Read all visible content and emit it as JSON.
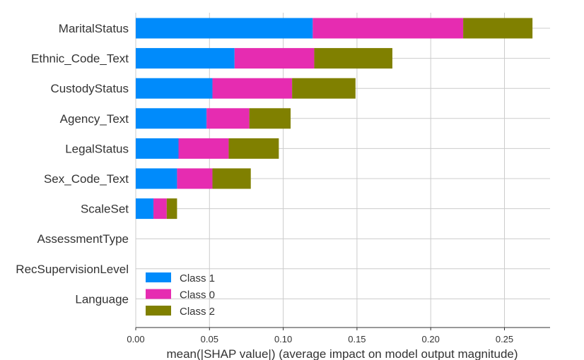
{
  "chart_data": {
    "type": "bar",
    "orientation": "horizontal",
    "stacked": true,
    "categories": [
      "MaritalStatus",
      "Ethnic_Code_Text",
      "CustodyStatus",
      "Agency_Text",
      "LegalStatus",
      "Sex_Code_Text",
      "ScaleSet",
      "AssessmentType",
      "RecSupervisionLevel",
      "Language"
    ],
    "series": [
      {
        "name": "Class 1",
        "color": "#008bfb",
        "values": [
          0.12,
          0.067,
          0.052,
          0.048,
          0.029,
          0.028,
          0.012,
          0.0,
          0.0,
          0.0
        ]
      },
      {
        "name": "Class 0",
        "color": "#e62cb1",
        "values": [
          0.102,
          0.054,
          0.054,
          0.029,
          0.034,
          0.024,
          0.009,
          0.0,
          0.0,
          0.0
        ]
      },
      {
        "name": "Class 2",
        "color": "#808000",
        "values": [
          0.047,
          0.053,
          0.043,
          0.028,
          0.034,
          0.026,
          0.007,
          0.0,
          0.0,
          0.0
        ]
      }
    ],
    "xlim": [
      0,
      0.28
    ],
    "xticks": [
      "0.00",
      "0.05",
      "0.10",
      "0.15",
      "0.20",
      "0.25"
    ],
    "xlabel": "mean(|SHAP value|) (average impact on model output magnitude)",
    "ylabel": "",
    "title": "",
    "grid": true,
    "legend_position": "lower-left"
  }
}
